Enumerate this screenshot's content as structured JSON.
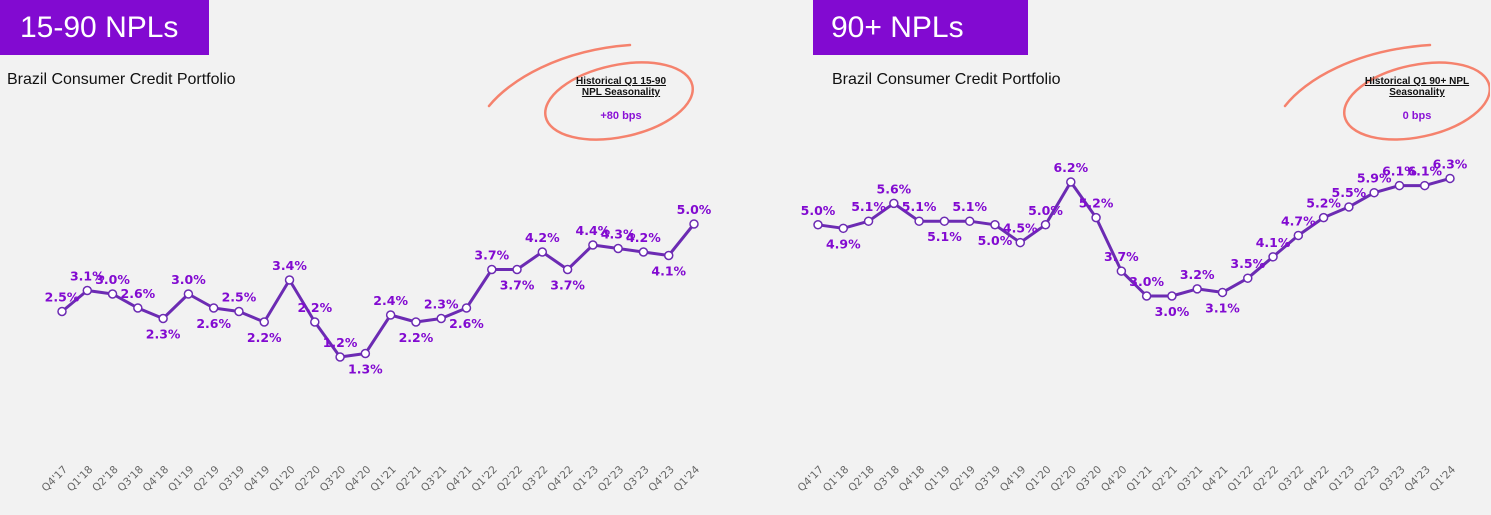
{
  "chart_data": [
    {
      "type": "line",
      "title": "15-90 NPLs",
      "subtitle": "Brazil Consumer Credit Portfolio",
      "annotation": {
        "header_line1": "Historical Q1 15-90",
        "header_line2": "NPL Seasonality",
        "value": "+80 bps"
      },
      "categories": [
        "Q4'17",
        "Q1'18",
        "Q2'18",
        "Q3'18",
        "Q4'18",
        "Q1'19",
        "Q2'19",
        "Q3'19",
        "Q4'19",
        "Q1'20",
        "Q2'20",
        "Q3'20",
        "Q4'20",
        "Q1'21",
        "Q2'21",
        "Q3'21",
        "Q4'21",
        "Q1'22",
        "Q2'22",
        "Q3'22",
        "Q4'22",
        "Q1'23",
        "Q2'23",
        "Q3'23",
        "Q4'23",
        "Q1'24"
      ],
      "values": [
        2.5,
        3.1,
        3.0,
        2.6,
        2.3,
        3.0,
        2.6,
        2.5,
        2.2,
        3.4,
        2.2,
        1.2,
        1.3,
        2.4,
        2.2,
        2.3,
        2.6,
        3.7,
        3.7,
        4.2,
        3.7,
        4.4,
        4.3,
        4.2,
        4.1,
        5.0
      ],
      "labels": [
        "2.5%",
        "3.1%",
        "3.0%",
        "2.6%",
        "2.3%",
        "3.0%",
        "2.6%",
        "2.5%",
        "2.2%",
        "3.4%",
        "2.2%",
        "1.2%",
        "1.3%",
        "2.4%",
        "2.2%",
        "2.3%",
        "2.6%",
        "3.7%",
        "3.7%",
        "4.2%",
        "3.7%",
        "4.4%",
        "4.3%",
        "4.2%",
        "4.1%",
        "5.0%"
      ],
      "label_position": [
        "above",
        "above",
        "above",
        "above",
        "below",
        "above",
        "below",
        "above",
        "below",
        "above",
        "above",
        "above",
        "below",
        "above",
        "below",
        "above",
        "below",
        "above",
        "below",
        "above",
        "below",
        "above",
        "above",
        "above",
        "below",
        "above"
      ],
      "series_color": "#6c2bb3",
      "label_color": "#820ad1",
      "title_bg": "#820ad1",
      "circle_color": "#f5826d"
    },
    {
      "type": "line",
      "title": "90+ NPLs",
      "subtitle": "Brazil Consumer Credit Portfolio",
      "annotation": {
        "header_line1": "Historical Q1 90+ NPL",
        "header_line2": "Seasonality",
        "value": "0 bps"
      },
      "categories": [
        "Q4'17",
        "Q1'18",
        "Q2'18",
        "Q3'18",
        "Q4'18",
        "Q1'19",
        "Q2'19",
        "Q3'19",
        "Q4'19",
        "Q1'20",
        "Q2'20",
        "Q3'20",
        "Q4'20",
        "Q1'21",
        "Q2'21",
        "Q3'21",
        "Q4'21",
        "Q1'22",
        "Q2'22",
        "Q3'22",
        "Q4'22",
        "Q1'23",
        "Q2'23",
        "Q3'23",
        "Q4'23",
        "Q1'24"
      ],
      "values": [
        5.0,
        4.9,
        5.1,
        5.6,
        5.1,
        5.1,
        5.1,
        5.0,
        4.5,
        5.0,
        6.2,
        5.2,
        3.7,
        3.0,
        3.0,
        3.2,
        3.1,
        3.5,
        4.1,
        4.7,
        5.2,
        5.5,
        5.9,
        6.1,
        6.1,
        6.3
      ],
      "labels": [
        "5.0%",
        "4.9%",
        "5.1%",
        "5.6%",
        "5.1%",
        "5.1%",
        "5.1%",
        "5.0%",
        "4.5%",
        "5.0%",
        "6.2%",
        "5.2%",
        "3.7%",
        "3.0%",
        "3.0%",
        "3.2%",
        "3.1%",
        "3.5%",
        "4.1%",
        "4.7%",
        "5.2%",
        "5.5%",
        "5.9%",
        "6.1%",
        "6.1%",
        "6.3%"
      ],
      "label_position": [
        "above",
        "below",
        "above",
        "above",
        "above",
        "below",
        "above",
        "below",
        "above",
        "above",
        "above",
        "above",
        "above",
        "above",
        "below",
        "above",
        "below",
        "above",
        "above",
        "above",
        "above",
        "above",
        "above",
        "above",
        "above",
        "above"
      ],
      "series_color": "#6c2bb3",
      "label_color": "#820ad1",
      "title_bg": "#820ad1",
      "circle_color": "#f5826d"
    }
  ]
}
